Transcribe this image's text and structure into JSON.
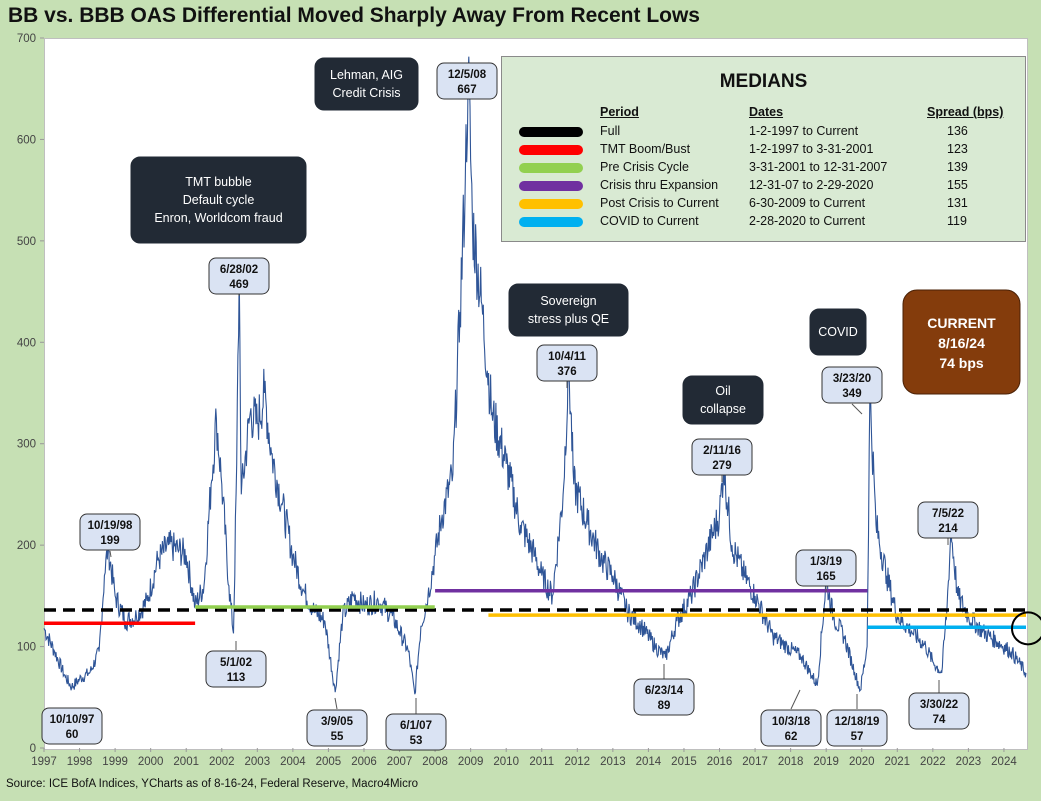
{
  "title": "BB vs. BBB OAS Differential Moved Sharply Away From Recent Lows",
  "source": "Source: ICE BofA Indices, YCharts as of 8-16-24, Federal Reserve, Macro4Micro",
  "chart_data": {
    "type": "line",
    "ylim": [
      0,
      700
    ],
    "yticks": [
      "0",
      "100",
      "200",
      "300",
      "400",
      "500",
      "600",
      "700"
    ],
    "xlim": [
      1997,
      2024.62
    ],
    "xticks": [
      "1997",
      "1998",
      "1999",
      "2000",
      "2001",
      "2002",
      "2003",
      "2004",
      "2005",
      "2006",
      "2007",
      "2008",
      "2009",
      "2010",
      "2011",
      "2012",
      "2013",
      "2014",
      "2015",
      "2016",
      "2017",
      "2018",
      "2019",
      "2020",
      "2021",
      "2022",
      "2023",
      "2024"
    ],
    "series": [
      {
        "name": "BB vs. BBB OAS Differential (bps)",
        "color": "#2f5597",
        "points": [
          [
            1997.0,
            118
          ],
          [
            1997.3,
            95
          ],
          [
            1997.6,
            70
          ],
          [
            1997.78,
            60
          ],
          [
            1998.0,
            68
          ],
          [
            1998.3,
            75
          ],
          [
            1998.55,
            95
          ],
          [
            1998.7,
            170
          ],
          [
            1998.8,
            199
          ],
          [
            1999.0,
            150
          ],
          [
            1999.3,
            125
          ],
          [
            1999.6,
            130
          ],
          [
            1999.9,
            145
          ],
          [
            2000.2,
            185
          ],
          [
            2000.5,
            200
          ],
          [
            2000.8,
            195
          ],
          [
            2001.0,
            190
          ],
          [
            2001.25,
            140
          ],
          [
            2001.5,
            160
          ],
          [
            2001.7,
            260
          ],
          [
            2001.85,
            325
          ],
          [
            2002.0,
            260
          ],
          [
            2002.2,
            160
          ],
          [
            2002.33,
            113
          ],
          [
            2002.42,
            280
          ],
          [
            2002.49,
            469
          ],
          [
            2002.55,
            250
          ],
          [
            2002.8,
            330
          ],
          [
            2003.0,
            320
          ],
          [
            2003.2,
            350
          ],
          [
            2003.4,
            290
          ],
          [
            2003.7,
            240
          ],
          [
            2004.0,
            190
          ],
          [
            2004.3,
            155
          ],
          [
            2004.6,
            135
          ],
          [
            2004.9,
            125
          ],
          [
            2005.19,
            55
          ],
          [
            2005.4,
            130
          ],
          [
            2005.7,
            150
          ],
          [
            2006.0,
            140
          ],
          [
            2006.4,
            145
          ],
          [
            2006.8,
            130
          ],
          [
            2007.0,
            115
          ],
          [
            2007.25,
            95
          ],
          [
            2007.43,
            53
          ],
          [
            2007.6,
            120
          ],
          [
            2007.8,
            150
          ],
          [
            2008.0,
            190
          ],
          [
            2008.2,
            230
          ],
          [
            2008.5,
            270
          ],
          [
            2008.7,
            430
          ],
          [
            2008.85,
            560
          ],
          [
            2008.93,
            667
          ],
          [
            2009.05,
            520
          ],
          [
            2009.3,
            440
          ],
          [
            2009.6,
            330
          ],
          [
            2010.0,
            280
          ],
          [
            2010.4,
            220
          ],
          [
            2010.8,
            190
          ],
          [
            2011.0,
            170
          ],
          [
            2011.3,
            150
          ],
          [
            2011.6,
            250
          ],
          [
            2011.76,
            376
          ],
          [
            2011.9,
            260
          ],
          [
            2012.3,
            220
          ],
          [
            2012.7,
            185
          ],
          [
            2013.0,
            170
          ],
          [
            2013.4,
            135
          ],
          [
            2013.8,
            120
          ],
          [
            2014.2,
            100
          ],
          [
            2014.48,
            89
          ],
          [
            2014.8,
            125
          ],
          [
            2015.2,
            150
          ],
          [
            2015.6,
            190
          ],
          [
            2016.0,
            230
          ],
          [
            2016.12,
            279
          ],
          [
            2016.35,
            200
          ],
          [
            2016.7,
            170
          ],
          [
            2017.0,
            150
          ],
          [
            2017.5,
            110
          ],
          [
            2017.9,
            100
          ],
          [
            2018.3,
            90
          ],
          [
            2018.75,
            62
          ],
          [
            2019.0,
            165
          ],
          [
            2019.2,
            130
          ],
          [
            2019.5,
            110
          ],
          [
            2019.8,
            75
          ],
          [
            2019.96,
            57
          ],
          [
            2020.15,
            100
          ],
          [
            2020.23,
            349
          ],
          [
            2020.4,
            220
          ],
          [
            2020.7,
            170
          ],
          [
            2021.0,
            130
          ],
          [
            2021.4,
            115
          ],
          [
            2021.8,
            100
          ],
          [
            2022.0,
            85
          ],
          [
            2022.25,
            74
          ],
          [
            2022.4,
            140
          ],
          [
            2022.51,
            214
          ],
          [
            2022.7,
            150
          ],
          [
            2023.0,
            130
          ],
          [
            2023.4,
            115
          ],
          [
            2023.8,
            105
          ],
          [
            2024.2,
            95
          ],
          [
            2024.62,
            74
          ]
        ]
      }
    ],
    "medians": {
      "title": "MEDIANS",
      "headers": {
        "period": "Period",
        "dates": "Dates",
        "spread": "Spread (bps)"
      },
      "rows": [
        {
          "color": "#000000",
          "period": "Full",
          "dates": "1-2-1997 to Current",
          "spread": "136",
          "value": 136,
          "x0": 1997,
          "x1": 2024.62,
          "dashed": true
        },
        {
          "color": "#ff0000",
          "period": "TMT  Boom/Bust",
          "dates": "1-2-1997 to 3-31-2001",
          "spread": "123",
          "value": 123,
          "x0": 1997,
          "x1": 2001.25
        },
        {
          "color": "#92d050",
          "period": "Pre Crisis Cycle",
          "dates": "3-31-2001  to 12-31-2007",
          "spread": "139",
          "value": 139,
          "x0": 2001.25,
          "x1": 2007.99
        },
        {
          "color": "#7030a0",
          "period": "Crisis thru Expansion",
          "dates": "12-31-07 to 2-29-2020",
          "spread": "155",
          "value": 155,
          "x0": 2008.0,
          "x1": 2020.16
        },
        {
          "color": "#ffc000",
          "period": "Post Crisis to Current",
          "dates": "6-30-2009  to Current",
          "spread": "131",
          "value": 131,
          "x0": 2009.5,
          "x1": 2024.62
        },
        {
          "color": "#00b0f0",
          "period": "COVID to Current",
          "dates": "2-28-2020  to Current",
          "spread": "119",
          "value": 119,
          "x0": 2020.16,
          "x1": 2024.62
        }
      ]
    },
    "annotations": [
      {
        "date": "10/10/97",
        "value": "60"
      },
      {
        "date": "10/19/98",
        "value": "199"
      },
      {
        "date": "6/28/02",
        "value": "469"
      },
      {
        "date": "5/1/02",
        "value": "113"
      },
      {
        "date": "3/9/05",
        "value": "55"
      },
      {
        "date": "6/1/07",
        "value": "53"
      },
      {
        "date": "12/5/08",
        "value": "667"
      },
      {
        "date": "10/4/11",
        "value": "376"
      },
      {
        "date": "6/23/14",
        "value": "89"
      },
      {
        "date": "2/11/16",
        "value": "279"
      },
      {
        "date": "10/3/18",
        "value": "62"
      },
      {
        "date": "1/3/19",
        "value": "165"
      },
      {
        "date": "12/18/19",
        "value": "57"
      },
      {
        "date": "3/23/20",
        "value": "349"
      },
      {
        "date": "3/30/22",
        "value": "74"
      },
      {
        "date": "7/5/22",
        "value": "214"
      }
    ],
    "event_labels": [
      {
        "lines": [
          "TMT bubble",
          "Default cycle",
          "Enron, Worldcom fraud"
        ]
      },
      {
        "lines": [
          "Lehman, AIG",
          "Credit Crisis"
        ]
      },
      {
        "lines": [
          "Sovereign",
          "stress plus QE"
        ]
      },
      {
        "lines": [
          "Oil",
          "collapse"
        ]
      },
      {
        "lines": [
          "COVID"
        ]
      }
    ],
    "current": {
      "lines": [
        "CURRENT",
        "8/16/24",
        "74 bps"
      ],
      "color": "#843c0c"
    }
  }
}
